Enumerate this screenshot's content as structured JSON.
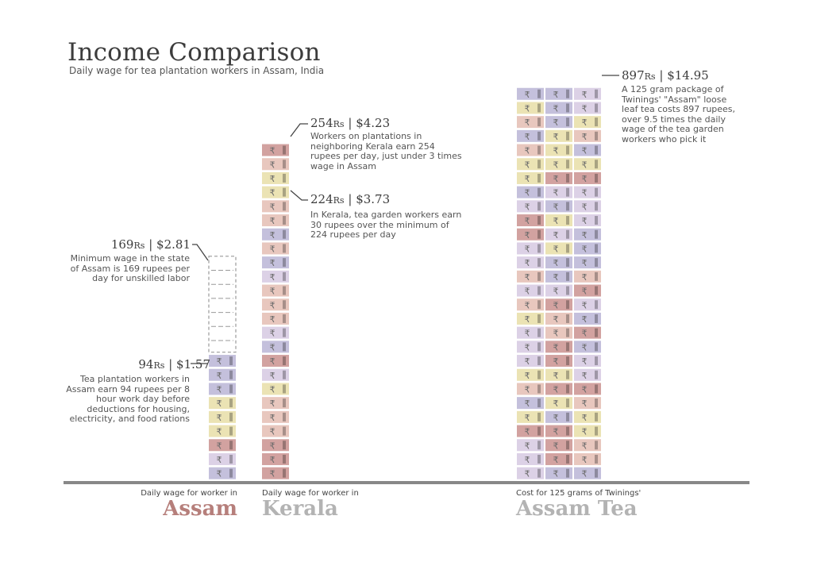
{
  "title": "Income Comparison",
  "subtitle": "Daily wage for tea plantation workers in Assam, India",
  "currency_symbol": "₹",
  "colors": {
    "rose": "#e8c7be",
    "red": "#d2a2a0",
    "lilac": "#dcd1e6",
    "blue": "#c4c0dc",
    "yellow": "#ebe3b4",
    "minimum_outline": "#999999",
    "baseline": "#888888",
    "assam_title": "#b67f7b",
    "kerala_title": "#b3b3b3",
    "tea_title": "#b3b3b3"
  },
  "chart_data": {
    "type": "bar",
    "unit": "Rs per day",
    "categories": [
      "Assam",
      "Kerala",
      "Assam Tea"
    ],
    "values": [
      94,
      254,
      897
    ],
    "reference_lines": [
      {
        "category": "Assam",
        "value": 169,
        "style": "dashed"
      },
      {
        "category": "Kerala",
        "value": 224
      }
    ],
    "annotations": [
      {
        "id": "assam",
        "head_rs": "94",
        "head_usd": "$1.57",
        "text": "Tea plantation workers in Assam earn 94 rupees per 8 hour work day before deductions for housing, electricity, and food rations"
      },
      {
        "id": "minimum",
        "head_rs": "169",
        "head_usd": "$2.81",
        "text": "Minimum wage in the state of Assam is 169 rupees per day for unskilled labor"
      },
      {
        "id": "kerala",
        "head_rs": "254",
        "head_usd": "$4.23",
        "text": "Workers on plantations in neighboring Kerala earn 254 rupees per day, just under 3 times wage in Assam"
      },
      {
        "id": "kerala_min",
        "head_rs": "224",
        "head_usd": "$3.73",
        "text": "In Kerala, tea garden workers earn 30 rupees over the minimum of 224 rupees per day"
      },
      {
        "id": "tea",
        "head_rs": "897",
        "head_usd": "$14.95",
        "text": "A 125 gram package of Twinings' \"Assam\" loose leaf tea costs 897 rupees, over 9.5 times the daily wage of the tea garden workers who pick it"
      }
    ],
    "rs_suffix": "Rs",
    "separator": "|"
  },
  "captions": {
    "assam": {
      "small": "Daily wage for worker in",
      "title": "Assam"
    },
    "kerala": {
      "small": "Daily wage for worker in",
      "title": "Kerala"
    },
    "tea": {
      "small": "Cost for 125 grams of Twinings'",
      "title": "Assam Tea"
    }
  }
}
